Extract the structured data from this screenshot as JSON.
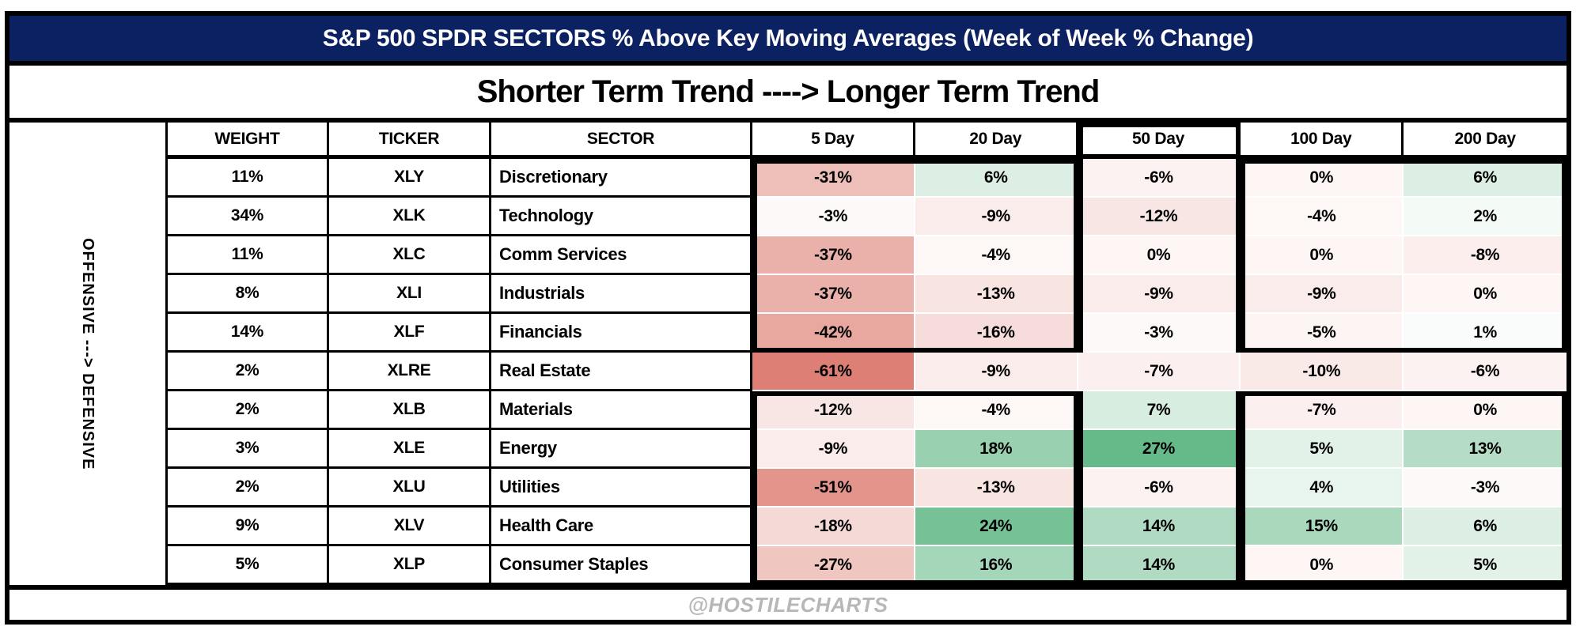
{
  "title": "S&P 500 SPDR SECTORS % Above Key Moving Averages (Week of Week % Change)",
  "subtitle": "Shorter Term Trend ----> Longer Term Trend",
  "left_axis_label": "OFFENSIVE ---> DEFENSIVE",
  "footer": "@HOSTILECHARTS",
  "columns": [
    "WEIGHT",
    "TICKER",
    "SECTOR",
    "5 Day",
    "20 Day",
    "50 Day",
    "100 Day",
    "200 Day"
  ],
  "rows": [
    {
      "weight": "11%",
      "ticker": "XLY",
      "sector": "Discretionary",
      "values": [
        -31,
        6,
        -6,
        0,
        6
      ]
    },
    {
      "weight": "34%",
      "ticker": "XLK",
      "sector": "Technology",
      "values": [
        -3,
        -9,
        -12,
        -4,
        2
      ]
    },
    {
      "weight": "11%",
      "ticker": "XLC",
      "sector": "Comm Services",
      "values": [
        -37,
        -4,
        0,
        0,
        -8
      ]
    },
    {
      "weight": "8%",
      "ticker": "XLI",
      "sector": "Industrials",
      "values": [
        -37,
        -13,
        -9,
        -9,
        0
      ]
    },
    {
      "weight": "14%",
      "ticker": "XLF",
      "sector": "Financials",
      "values": [
        -42,
        -16,
        -3,
        -5,
        1
      ]
    },
    {
      "weight": "2%",
      "ticker": "XLRE",
      "sector": "Real Estate",
      "values": [
        -61,
        -9,
        -7,
        -10,
        -6
      ]
    },
    {
      "weight": "2%",
      "ticker": "XLB",
      "sector": "Materials",
      "values": [
        -12,
        -4,
        7,
        -7,
        0
      ]
    },
    {
      "weight": "3%",
      "ticker": "XLE",
      "sector": "Energy",
      "values": [
        -9,
        18,
        27,
        5,
        13
      ]
    },
    {
      "weight": "2%",
      "ticker": "XLU",
      "sector": "Utilities",
      "values": [
        -51,
        -13,
        -6,
        4,
        -3
      ]
    },
    {
      "weight": "9%",
      "ticker": "XLV",
      "sector": "Health Care",
      "values": [
        -18,
        24,
        14,
        15,
        6
      ]
    },
    {
      "weight": "5%",
      "ticker": "XLP",
      "sector": "Consumer Staples",
      "values": [
        -27,
        16,
        14,
        0,
        5
      ]
    }
  ],
  "colors": {
    "title_navy": "#0b2161",
    "heat_max_red": "#dd7f74",
    "heat_max_green": "#66b989",
    "heat_zero_tint": "#fdf6f5",
    "red_domain": 61,
    "green_domain": 27,
    "footer_gray": "#b7b7b7"
  },
  "chart_data": {
    "type": "heatmap",
    "title": "S&P 500 SPDR SECTORS % Above Key Moving Averages (Week of Week % Change)",
    "subtitle": "Shorter Term Trend ----> Longer Term Trend",
    "row_axis_note": "OFFENSIVE ---> DEFENSIVE",
    "columns": [
      "5 Day",
      "20 Day",
      "50 Day",
      "100 Day",
      "200 Day"
    ],
    "row_labels": [
      "Discretionary (XLY, 11%)",
      "Technology (XLK, 34%)",
      "Comm Services (XLC, 11%)",
      "Industrials (XLI, 8%)",
      "Financials (XLF, 14%)",
      "Real Estate (XLRE, 2%)",
      "Materials (XLB, 2%)",
      "Energy (XLE, 3%)",
      "Utilities (XLU, 2%)",
      "Health Care (XLV, 9%)",
      "Consumer Staples (XLP, 5%)"
    ],
    "values_pct": [
      [
        -31,
        6,
        -6,
        0,
        6
      ],
      [
        -3,
        -9,
        -12,
        -4,
        2
      ],
      [
        -37,
        -4,
        0,
        0,
        -8
      ],
      [
        -37,
        -13,
        -9,
        -9,
        0
      ],
      [
        -42,
        -16,
        -3,
        -5,
        1
      ],
      [
        -61,
        -9,
        -7,
        -10,
        -6
      ],
      [
        -12,
        -4,
        7,
        -7,
        0
      ],
      [
        -9,
        18,
        27,
        5,
        13
      ],
      [
        -51,
        -13,
        -6,
        4,
        -3
      ],
      [
        -18,
        24,
        14,
        15,
        6
      ],
      [
        -27,
        16,
        14,
        0,
        5
      ]
    ],
    "color_scale": {
      "negative_end": "#dd7f74",
      "midpoint": "#ffffff",
      "positive_end": "#66b989",
      "negative_domain": -61,
      "positive_domain": 27
    },
    "legend_position": "none",
    "grid": "boxed groups: 5/20 Day offensive block, 50 Day column, 100/200 Day offensive block, and defensive blocks"
  }
}
